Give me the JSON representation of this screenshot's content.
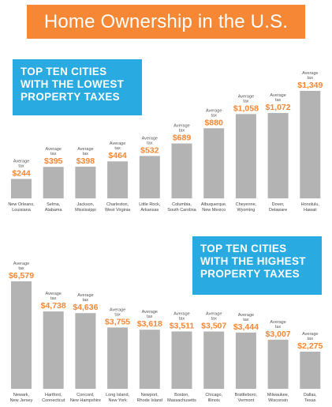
{
  "header": {
    "title": "Home Ownership in the U.S."
  },
  "colors": {
    "banner": "#f58735",
    "panel": "#29abe2",
    "bar": "#b3b3b3",
    "value_text": "#f58735"
  },
  "chart_data": [
    {
      "type": "bar",
      "title_lines": [
        "TOP TEN CITIES",
        "WITH THE LOWEST",
        "PROPERTY TAXES"
      ],
      "value_caption": [
        "Average",
        "tax"
      ],
      "categories": [
        [
          "New Orleans,",
          "Louisiana"
        ],
        [
          "Selma,",
          "Alabama"
        ],
        [
          "Jackson,",
          "Mississippi"
        ],
        [
          "Charleston,",
          "West Virginia"
        ],
        [
          "Little Rock,",
          "Arkansas"
        ],
        [
          "Columbia,",
          "South Carolina"
        ],
        [
          "Albuquerque,",
          "New Mexico"
        ],
        [
          "Cheyenne,",
          "Wyoming"
        ],
        [
          "Dover,",
          "Delaware"
        ],
        [
          "Honolulu,",
          "Hawaii"
        ]
      ],
      "values": [
        244,
        395,
        398,
        464,
        532,
        689,
        880,
        1058,
        1072,
        1349
      ],
      "value_labels": [
        "$244",
        "$395",
        "$398",
        "$464",
        "$532",
        "$689",
        "$880",
        "$1,058",
        "$1,072",
        "$1,349"
      ]
    },
    {
      "type": "bar",
      "title_lines": [
        "TOP TEN CITIES",
        "WITH THE HIGHEST",
        "PROPERTY TAXES"
      ],
      "value_caption": [
        "Average",
        "tax"
      ],
      "categories": [
        [
          "Newark,",
          "New Jersey"
        ],
        [
          "Hartford,",
          "Connecticut"
        ],
        [
          "Concord,",
          "New Hampshire"
        ],
        [
          "Long Island,",
          "New York"
        ],
        [
          "Newport,",
          "Rhode Island"
        ],
        [
          "Boston,",
          "Massachusetts"
        ],
        [
          "Chicago,",
          "Illinois"
        ],
        [
          "Brattleboro,",
          "Vermont"
        ],
        [
          "Milwaukee,",
          "Wisconsin"
        ],
        [
          "Dallas,",
          "Texas"
        ]
      ],
      "values": [
        6579,
        4738,
        4636,
        3755,
        3618,
        3511,
        3507,
        3444,
        3007,
        2275
      ],
      "value_labels": [
        "$6,579",
        "$4,738",
        "$4,636",
        "$3,755",
        "$3,618",
        "$3,511",
        "$3,507",
        "$3,444",
        "$3,007",
        "$2,275"
      ]
    }
  ]
}
